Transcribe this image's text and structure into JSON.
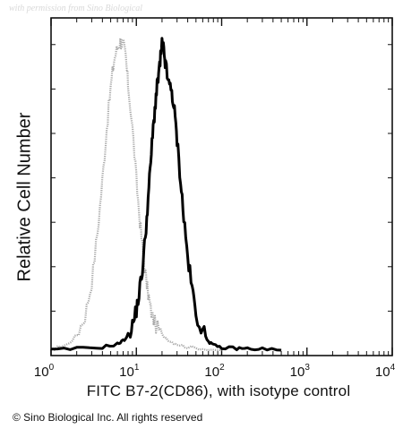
{
  "watermark": "with permission from Sino Biological",
  "copyright": "© Sino Biological Inc. All rights reserved",
  "chart_data": {
    "type": "area",
    "xlabel": "FITC  B7-2(CD86),  with isotype control",
    "ylabel": "Relative Cell Number",
    "x_scale": "log",
    "xlim": [
      1,
      10000
    ],
    "ylim": [
      0,
      1
    ],
    "x_ticks": [
      {
        "base": "10",
        "exp": "0"
      },
      {
        "base": "10",
        "exp": "1"
      },
      {
        "base": "10",
        "exp": "2"
      },
      {
        "base": "10",
        "exp": "3"
      },
      {
        "base": "10",
        "exp": "4"
      }
    ],
    "grid": false,
    "colors": {
      "isotype": "#a8a8a8",
      "sample": "#000000"
    },
    "series": [
      {
        "x": [
          1,
          1.2,
          1.6,
          2,
          2.5,
          3,
          3.5,
          4,
          4.5,
          5,
          5.5,
          6,
          6.5,
          7,
          7.5,
          8,
          9,
          10,
          11,
          12,
          13,
          14,
          15,
          17,
          20,
          25,
          30,
          40,
          60,
          100
        ],
        "y": [
          0.0,
          0.01,
          0.02,
          0.05,
          0.11,
          0.22,
          0.38,
          0.55,
          0.72,
          0.85,
          0.94,
          0.98,
          1.0,
          0.99,
          0.95,
          0.86,
          0.72,
          0.55,
          0.42,
          0.31,
          0.23,
          0.17,
          0.12,
          0.08,
          0.05,
          0.03,
          0.02,
          0.01,
          0.005,
          0.0
        ]
      },
      {
        "x": [
          1,
          2,
          4,
          6,
          7,
          8,
          9,
          10,
          11,
          12,
          13,
          14,
          15,
          16,
          17,
          18,
          19,
          20,
          21,
          22,
          24,
          26,
          28,
          30,
          33,
          36,
          40,
          45,
          50,
          60,
          70,
          80,
          100,
          150,
          200,
          300,
          500
        ],
        "y": [
          0.0,
          0.005,
          0.01,
          0.02,
          0.03,
          0.05,
          0.08,
          0.13,
          0.2,
          0.28,
          0.4,
          0.52,
          0.64,
          0.74,
          0.82,
          0.88,
          0.93,
          0.99,
          0.97,
          0.92,
          0.86,
          0.84,
          0.77,
          0.68,
          0.55,
          0.43,
          0.3,
          0.2,
          0.12,
          0.06,
          0.03,
          0.015,
          0.008,
          0.006,
          0.005,
          0.004,
          0.0
        ]
      }
    ]
  }
}
